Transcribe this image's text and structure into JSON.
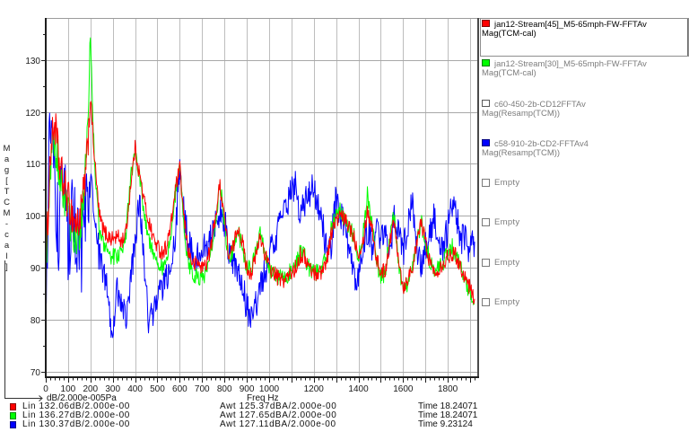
{
  "y_axis": {
    "label": "Mag[TCM-cal]"
  },
  "x_axis": {
    "unit_label": "dB/2.000e-005Pa",
    "title": "Freq Hz"
  },
  "summary_rows": [
    {
      "color": "#ff0000",
      "lin": "Lin 132.06dB/2.000e-00",
      "awt": "Awt 125.37dBA/2.000e-00",
      "time": "Time 18.24071"
    },
    {
      "color": "#00ff00",
      "lin": "Lin 136.27dB/2.000e-00",
      "awt": "Awt 127.65dBA/2.000e-00",
      "time": "Time 18.24071"
    },
    {
      "color": "#0000ff",
      "lin": "Lin 130.37dB/2.000e-00",
      "awt": "Awt 127.11dBA/2.000e-00",
      "time": "Time 9.23124"
    }
  ],
  "legend": {
    "items": [
      {
        "name": "jan12-Stream[45]_M5-65mph-FW-FFTAv",
        "sub": "Mag(TCM-cal)",
        "color": "#ff0000",
        "selected": true
      },
      {
        "name": "jan12-Stream[30]_M5-65mph-FW-FFTAv",
        "sub": "Mag(TCM-cal)",
        "color": "#00ff00"
      },
      {
        "name": "c60-450-2b-CD12FFTAv",
        "sub": "Mag(Resamp(TCM))",
        "color": "#ffffff"
      },
      {
        "name": "c58-910-2b-CD2-FFTAv4",
        "sub": "Mag(Resamp(TCM))",
        "color": "#0000ff"
      },
      {
        "name": "Empty"
      },
      {
        "name": "Empty"
      },
      {
        "name": "Empty"
      },
      {
        "name": "Empty"
      }
    ]
  },
  "chart_data": {
    "type": "line",
    "title": "",
    "xlabel": "Freq Hz",
    "ylabel": "Mag[TCM-cal]",
    "y_unit": "dB/2.000e-005Pa",
    "xlim": [
      0,
      1936
    ],
    "ylim": [
      68.9,
      138.1
    ],
    "grid": true,
    "legend_position": "right",
    "x_grid": [
      0,
      100,
      200,
      300,
      400,
      500,
      600,
      700,
      800,
      900,
      1000,
      1100,
      1200,
      1300,
      1400,
      1500,
      1600,
      1700,
      1800,
      1900
    ],
    "x_tick_labels": [
      0,
      100,
      200,
      300,
      400,
      500,
      600,
      700,
      800,
      900,
      1000,
      1200,
      1400,
      1600,
      1800
    ],
    "x_minor_step": 20,
    "x_major_step": 100,
    "y_ticks": [
      70,
      80,
      90,
      100,
      110,
      120,
      130
    ],
    "y_minor_ticks": [
      75,
      85,
      95,
      105,
      115,
      125,
      135
    ],
    "x": [
      0,
      20,
      40,
      60,
      80,
      100,
      120,
      140,
      160,
      180,
      200,
      220,
      240,
      260,
      280,
      300,
      320,
      340,
      360,
      380,
      400,
      420,
      440,
      460,
      480,
      500,
      520,
      540,
      560,
      580,
      600,
      620,
      640,
      660,
      680,
      700,
      720,
      740,
      760,
      780,
      800,
      820,
      840,
      860,
      880,
      900,
      920,
      940,
      960,
      980,
      1000,
      1020,
      1040,
      1060,
      1080,
      1100,
      1120,
      1140,
      1160,
      1180,
      1200,
      1220,
      1240,
      1260,
      1280,
      1300,
      1320,
      1340,
      1360,
      1380,
      1400,
      1420,
      1440,
      1460,
      1480,
      1500,
      1520,
      1540,
      1560,
      1580,
      1600,
      1620,
      1640,
      1660,
      1680,
      1700,
      1720,
      1740,
      1760,
      1780,
      1800,
      1820,
      1840,
      1860,
      1880,
      1900,
      1920
    ],
    "series": [
      {
        "name": "jan12-Stream[45]_M5-65mph-FW-FFTAv",
        "color": "#ff0000",
        "values": [
          88,
          112,
          118,
          110,
          106,
          103,
          100,
          98,
          101,
          108,
          123,
          110,
          100,
          97,
          96,
          95.5,
          96,
          95,
          97,
          106,
          113,
          108,
          103,
          99,
          96,
          94,
          93,
          94,
          98,
          105,
          109,
          99,
          93,
          90.5,
          91,
          90,
          91,
          94,
          100,
          106,
          100,
          92,
          94,
          98,
          95,
          90,
          89,
          92,
          96,
          93,
          90,
          89,
          88,
          87.5,
          88,
          89,
          90,
          92.5,
          92,
          90,
          89,
          89,
          89.5,
          92,
          97,
          99,
          100,
          99,
          98,
          96,
          93,
          95,
          101,
          98,
          92,
          89,
          89.5,
          95,
          99,
          92,
          86,
          88,
          90,
          94,
          99,
          95,
          91,
          89,
          90,
          91,
          92,
          93,
          92,
          90,
          88,
          86,
          84
        ]
      },
      {
        "name": "jan12-Stream[30]_M5-65mph-FW-FFTAv",
        "color": "#00ff00",
        "values": [
          89,
          110,
          114,
          109,
          104,
          100,
          96,
          95,
          99,
          110,
          134,
          108,
          97,
          94,
          93,
          92,
          92.5,
          93,
          97,
          107,
          113.5,
          107,
          101,
          96,
          93,
          91,
          90,
          91.5,
          96,
          104,
          109,
          97,
          91,
          88,
          88.5,
          88,
          89.5,
          93,
          99,
          106,
          99,
          91,
          94,
          97,
          94,
          90,
          89.5,
          93,
          97,
          93,
          90,
          88.5,
          88,
          88,
          88.5,
          89.5,
          91,
          93,
          92,
          90,
          89,
          89,
          90,
          93,
          98,
          100,
          101,
          99,
          98,
          96,
          92,
          96,
          104,
          99,
          91,
          88,
          89,
          96,
          100,
          91,
          85,
          87,
          90,
          94,
          99,
          95,
          91,
          89,
          90,
          91,
          93,
          94,
          92,
          90,
          87,
          85,
          83
        ]
      },
      {
        "name": "c58-910-2b-CD2-FFTAv4",
        "color": "#0000ff",
        "values": [
          80,
          122,
          105,
          96,
          110,
          92,
          100,
          95,
          93,
          100,
          108,
          98,
          92,
          89,
          84,
          76,
          86,
          83,
          81,
          88,
          95,
          103,
          92,
          80,
          82,
          84,
          86,
          88,
          90,
          95,
          111,
          100,
          94,
          93,
          92,
          93,
          94,
          96,
          98,
          101,
          99,
          93,
          91,
          88,
          86,
          83,
          80,
          83,
          86,
          89,
          92,
          95,
          97,
          100,
          102,
          105,
          106,
          100,
          102,
          104,
          106,
          102,
          98,
          92,
          95,
          104,
          100,
          97,
          92,
          88,
          89,
          95,
          97,
          94,
          97,
          95,
          98,
          94,
          99,
          96,
          93,
          98,
          104,
          94,
          90,
          94,
          97,
          100,
          95,
          93,
          98,
          102,
          99,
          95,
          96,
          93,
          95
        ]
      }
    ]
  }
}
